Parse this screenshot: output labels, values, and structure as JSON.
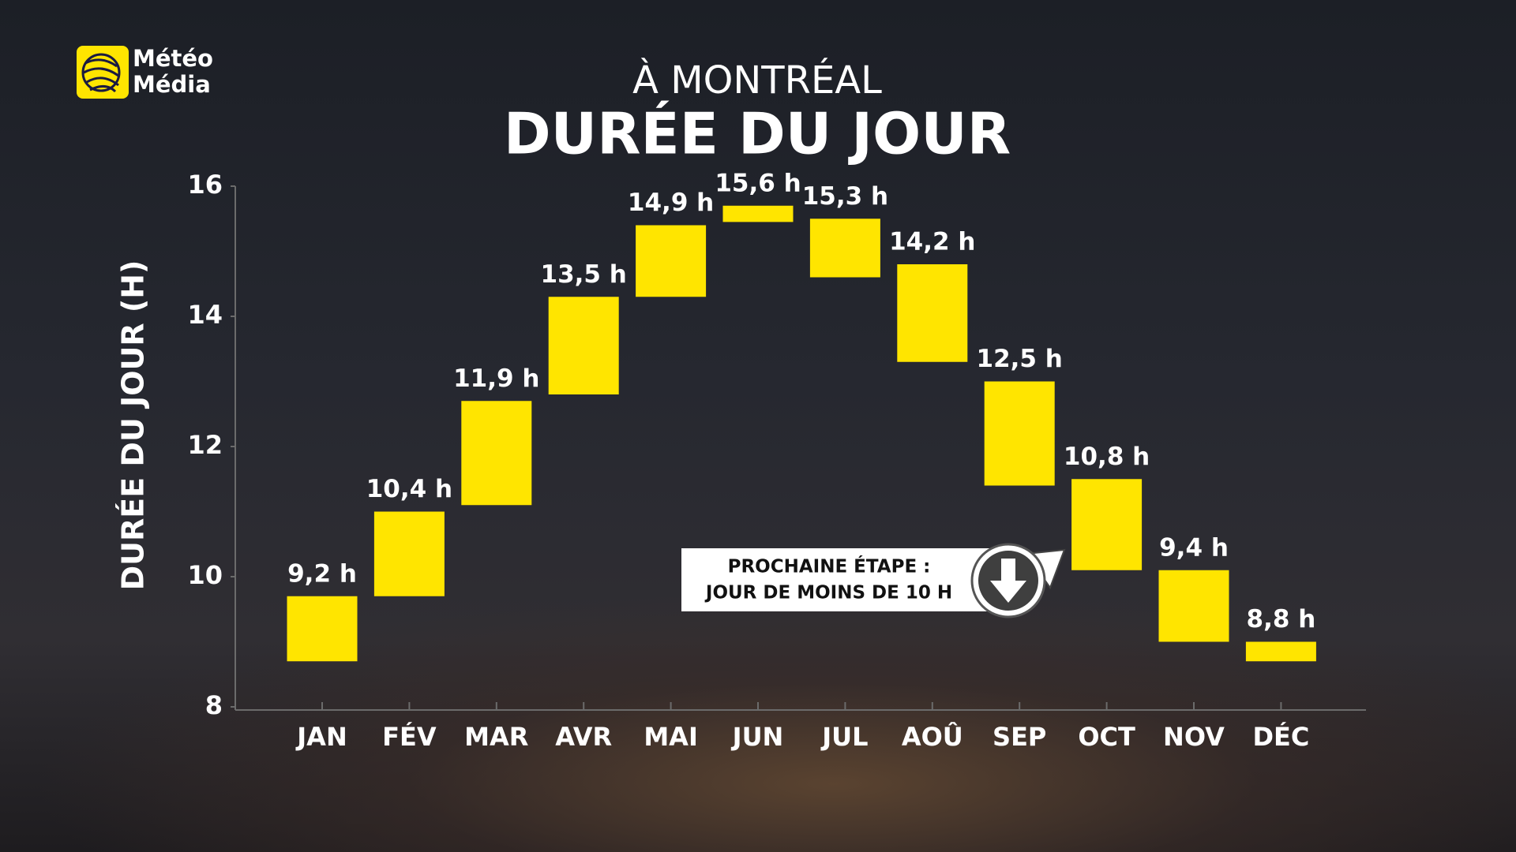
{
  "brand": {
    "line1": "Météo",
    "line2": "Média"
  },
  "chart_data": {
    "type": "floating-bar",
    "title": "DURÉE DU JOUR",
    "subtitle": "À MONTRÉAL",
    "ylabel": "DURÉE DU JOUR (H)",
    "categories": [
      "JAN",
      "FÉV",
      "MAR",
      "AVR",
      "MAI",
      "JUN",
      "JUL",
      "AOÛ",
      "SEP",
      "OCT",
      "NOV",
      "DÉC"
    ],
    "ranges": [
      [
        8.7,
        9.7
      ],
      [
        9.7,
        11.0
      ],
      [
        11.1,
        12.7
      ],
      [
        12.8,
        14.3
      ],
      [
        14.3,
        15.4
      ],
      [
        15.45,
        15.7
      ],
      [
        14.6,
        15.5
      ],
      [
        13.3,
        14.8
      ],
      [
        11.4,
        13.0
      ],
      [
        10.1,
        11.5
      ],
      [
        9.0,
        10.1
      ],
      [
        8.7,
        9.0
      ]
    ],
    "values": [
      9.2,
      10.4,
      11.9,
      13.5,
      14.9,
      15.6,
      15.3,
      14.2,
      12.5,
      10.8,
      9.4,
      8.8
    ],
    "value_labels": [
      "9,2 h",
      "10,4 h",
      "11,9 h",
      "13,5 h",
      "14,9 h",
      "15,6 h",
      "15,3 h",
      "14,2 h",
      "12,5 h",
      "10,8 h",
      "9,4 h",
      "8,8 h"
    ],
    "color": "#ffe500",
    "ylim": [
      8,
      16
    ],
    "yticks": [
      8,
      10,
      12,
      14,
      16
    ],
    "annotation": {
      "line1": "PROCHAINE ÉTAPE :",
      "line2": "JOUR DE MOINS DE 10 H"
    }
  }
}
